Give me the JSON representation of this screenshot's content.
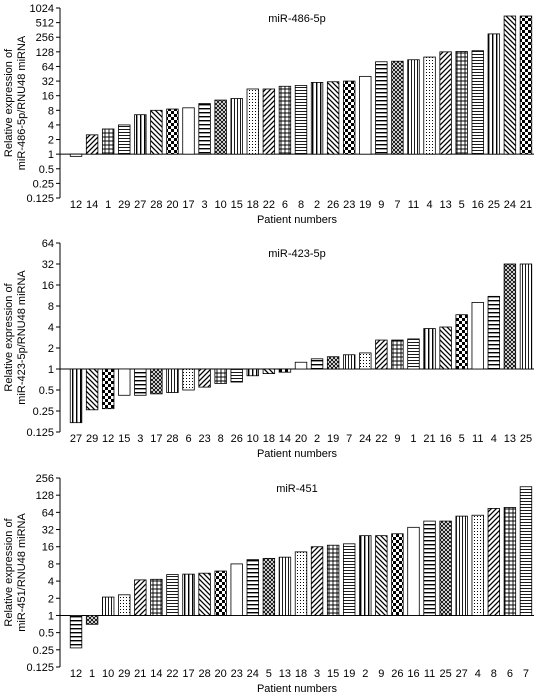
{
  "chart_data": [
    {
      "type": "bar",
      "title": "miR-486-5p",
      "ylabel": [
        "Relative expression of",
        "miR-486-5p/RNU48 miRNA"
      ],
      "xlabel": "Patient numbers",
      "yscale": "log2",
      "ylim": [
        0.125,
        1024
      ],
      "yticks": [
        "1024",
        "512",
        "256",
        "128",
        "64",
        "32",
        "16",
        "8",
        "4",
        "2",
        "1",
        "0.5",
        "0.25",
        "0.125"
      ],
      "categories": [
        "12",
        "14",
        "1",
        "29",
        "27",
        "28",
        "20",
        "17",
        "3",
        "10",
        "15",
        "18",
        "22",
        "6",
        "8",
        "2",
        "26",
        "23",
        "19",
        "9",
        "7",
        "11",
        "4",
        "13",
        "5",
        "16",
        "25",
        "24",
        "21"
      ],
      "values": [
        0.9,
        2.5,
        3.3,
        4,
        6.5,
        8,
        8.5,
        9,
        11,
        13,
        14,
        22,
        22,
        25,
        26,
        30,
        31,
        32,
        40,
        80,
        82,
        88,
        100,
        128,
        130,
        135,
        300,
        700,
        700
      ]
    },
    {
      "type": "bar",
      "title": "miR-423-5p",
      "ylabel": [
        "Relative expression of",
        "miR-423-5p/RNU48 miRNA"
      ],
      "xlabel": "Patient numbers",
      "yscale": "log2",
      "ylim": [
        0.125,
        64
      ],
      "yticks": [
        "64",
        "32",
        "16",
        "8",
        "4",
        "2",
        "1",
        "0.5",
        "0.25",
        "0.125"
      ],
      "categories": [
        "27",
        "29",
        "12",
        "15",
        "3",
        "17",
        "28",
        "6",
        "23",
        "8",
        "26",
        "10",
        "18",
        "14",
        "20",
        "2",
        "19",
        "7",
        "24",
        "22",
        "9",
        "1",
        "21",
        "16",
        "5",
        "11",
        "4",
        "13",
        "25"
      ],
      "values": [
        0.17,
        0.26,
        0.27,
        0.42,
        0.42,
        0.44,
        0.46,
        0.5,
        0.55,
        0.62,
        0.65,
        0.8,
        0.86,
        0.9,
        1.25,
        1.4,
        1.5,
        1.6,
        1.7,
        2.6,
        2.6,
        2.7,
        3.8,
        4,
        6,
        9,
        11,
        32,
        32
      ]
    },
    {
      "type": "bar",
      "title": "miR-451",
      "ylabel": [
        "Relative expression of",
        "miR-451/RNU48 miRNA"
      ],
      "xlabel": "Patient numbers",
      "yscale": "log2",
      "ylim": [
        0.125,
        256
      ],
      "yticks": [
        "256",
        "128",
        "64",
        "32",
        "16",
        "8",
        "4",
        "2",
        "1",
        "0.5",
        "0.25",
        "0.125"
      ],
      "categories": [
        "12",
        "1",
        "10",
        "29",
        "21",
        "14",
        "22",
        "17",
        "28",
        "20",
        "23",
        "24",
        "5",
        "13",
        "18",
        "3",
        "15",
        "19",
        "2",
        "9",
        "26",
        "16",
        "11",
        "25",
        "27",
        "4",
        "8",
        "6",
        "7"
      ],
      "values": [
        0.27,
        0.7,
        2.1,
        2.3,
        4.2,
        4.3,
        5.2,
        5.3,
        5.5,
        6,
        8,
        9.5,
        10,
        10.5,
        13,
        16,
        17,
        18,
        25,
        25,
        27,
        35,
        45,
        45,
        55,
        57,
        75,
        78,
        180
      ]
    }
  ]
}
